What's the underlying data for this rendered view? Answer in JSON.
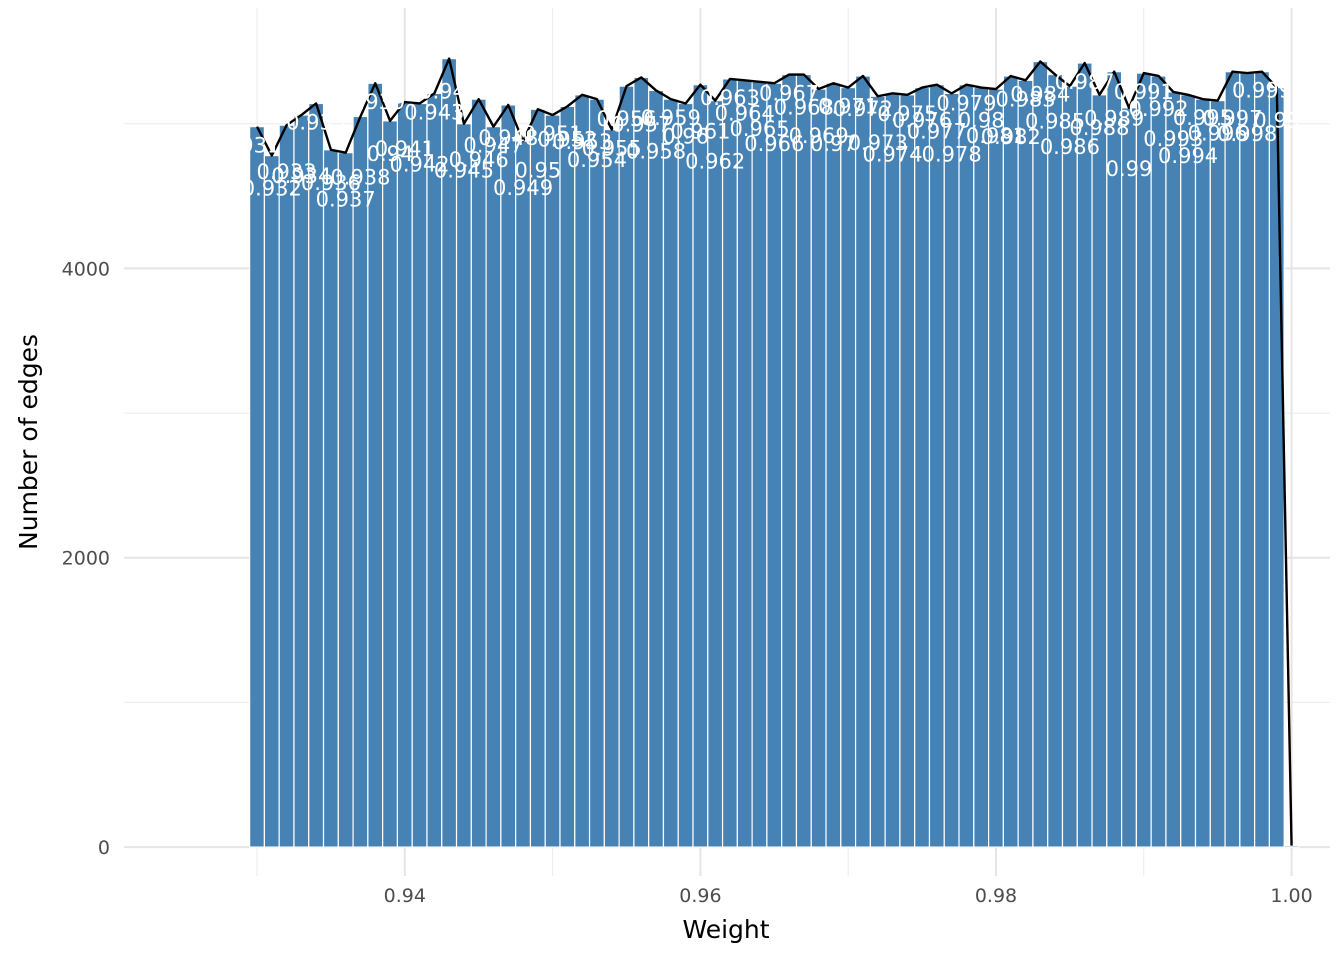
{
  "chart_data": {
    "type": "bar",
    "xlabel": "Weight",
    "ylabel": "Number of edges",
    "x": [
      0.93,
      0.931,
      0.932,
      0.933,
      0.934,
      0.935,
      0.936,
      0.937,
      0.938,
      0.939,
      0.94,
      0.941,
      0.942,
      0.943,
      0.944,
      0.945,
      0.946,
      0.947,
      0.948,
      0.949,
      0.95,
      0.951,
      0.952,
      0.953,
      0.954,
      0.955,
      0.956,
      0.957,
      0.958,
      0.959,
      0.96,
      0.961,
      0.962,
      0.963,
      0.964,
      0.965,
      0.966,
      0.967,
      0.968,
      0.969,
      0.97,
      0.971,
      0.972,
      0.973,
      0.974,
      0.975,
      0.976,
      0.977,
      0.978,
      0.979,
      0.98,
      0.981,
      0.982,
      0.983,
      0.984,
      0.985,
      0.986,
      0.987,
      0.988,
      0.989,
      0.99,
      0.991,
      0.992,
      0.993,
      0.994,
      0.995,
      0.996,
      0.997,
      0.998,
      0.999,
      1.0
    ],
    "values": [
      4980,
      4780,
      4990,
      5060,
      5140,
      4820,
      4800,
      5050,
      5280,
      5020,
      5150,
      5140,
      5210,
      5450,
      5000,
      5170,
      4980,
      5130,
      4880,
      5100,
      5060,
      5120,
      5200,
      5170,
      4960,
      5260,
      5320,
      5230,
      5170,
      5140,
      5270,
      5160,
      5310,
      5300,
      5290,
      5280,
      5340,
      5340,
      5240,
      5280,
      5250,
      5330,
      5190,
      5210,
      5200,
      5250,
      5270,
      5210,
      5270,
      5250,
      5240,
      5330,
      5300,
      5430,
      5340,
      5260,
      5420,
      5200,
      5360,
      5110,
      5350,
      5330,
      5220,
      5200,
      5170,
      5160,
      5360,
      5350,
      5360,
      5250,
      10
    ],
    "bar_labels": [
      ".931",
      "0.932",
      "0.933",
      "0.934",
      "0.935",
      "0.936",
      "0.937",
      "0.938",
      "0.939",
      "0.94",
      "0.941",
      "0.942",
      "0.943",
      "0.944",
      "0.945",
      "0.946",
      "0.947",
      "0.948",
      "0.949",
      "0.95",
      "0.951",
      "0.952",
      "0.953",
      "0.954",
      "0.955",
      "0.956",
      "0.957",
      "0.958",
      "0.959",
      "0.96",
      "0.961",
      "0.962",
      "0.963",
      "0.964",
      "0.965",
      "0.966",
      "0.967",
      "0.968",
      "0.969",
      "0.97",
      "0.971",
      "0.972",
      "0.973",
      "0.974",
      "0.975",
      "0.976",
      "0.977",
      "0.978",
      "0.979",
      "0.98",
      "0.981",
      "0.982",
      "0.983",
      "0.984",
      "0.985",
      "0.986",
      "0.987",
      "0.988",
      "0.989",
      "0.99",
      "0.991",
      "0.992",
      "0.993",
      "0.994",
      "0.995",
      "0.996",
      "0.997",
      "0.998",
      "0.999",
      "0.99",
      ""
    ],
    "xlim": [
      0.921,
      1.0026
    ],
    "ylim": [
      -200,
      5800
    ],
    "x_ticks": [
      0.94,
      0.96,
      0.98,
      1.0
    ],
    "x_tick_labels": [
      "0.94",
      "0.96",
      "0.98",
      "1.00"
    ],
    "y_ticks": [
      0,
      2000,
      4000
    ],
    "y_tick_labels": [
      "0",
      "2000",
      "4000"
    ],
    "grid": true,
    "bar_color": "#4682b4",
    "line_color": "#000000",
    "label_color": "#ffffff"
  }
}
